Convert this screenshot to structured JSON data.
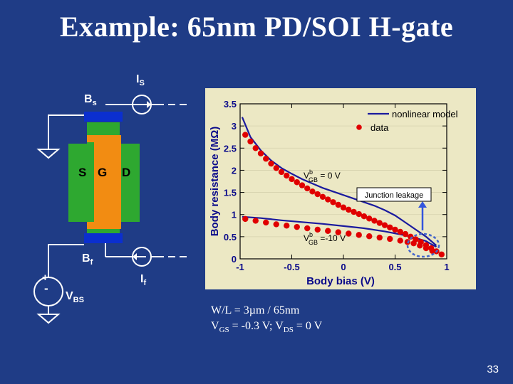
{
  "slide": {
    "title": "Example: 65nm PD/SOI H-gate",
    "page_number": "33"
  },
  "circuit": {
    "is_label": "I",
    "is_sub": "S",
    "bs_label": "B",
    "bs_sub": "s",
    "s_label": "S",
    "g_label": "G",
    "d_label": "D",
    "bf_label": "B",
    "bf_sub": "f",
    "if_label": "I",
    "if_sub": "f",
    "vbs_label": "V",
    "vbs_sub": "BS",
    "plus": "+",
    "minus": "-"
  },
  "caption": {
    "line1": "W/L = 3µm / 65nm",
    "line2_a": "V",
    "line2_sub1": "GS",
    "line2_b": " = -0.3 V; V",
    "line2_sub2": "DS",
    "line2_c": " = 0 V"
  },
  "chart_data": {
    "type": "line",
    "xlabel": "Body bias (V)",
    "ylabel": "Body resistance (MΩ)",
    "xlim": [
      -1,
      1
    ],
    "ylim": [
      0,
      3.5
    ],
    "x_ticks": [
      "-1",
      "-0.5",
      "0",
      "0.5",
      "1"
    ],
    "y_ticks": [
      "0",
      "0.5",
      "1",
      "1.5",
      "2",
      "2.5",
      "3",
      "3.5"
    ],
    "legend_position": "top-right",
    "legend": [
      "nonlinear model",
      "data"
    ],
    "annotations": {
      "upper_curve": "V",
      "upper_curve_sup": "b",
      "upper_curve_sub": "GB",
      "upper_curve_value": " = 0 V",
      "lower_curve": "V",
      "lower_curve_sup": "b",
      "lower_curve_sub": "GB",
      "lower_curve_value": " =-10 V",
      "callout": "Junction leakage"
    },
    "colors": {
      "model": "#1a1a9e",
      "data": "#e00000",
      "panel": "#ece8c4",
      "background": "#1f3c86",
      "circle": "#4466cc"
    },
    "series": [
      {
        "name": "nonlinear model",
        "curve": "VGB = 0 V",
        "kind": "line",
        "x": [
          -0.98,
          -0.9,
          -0.8,
          -0.7,
          -0.6,
          -0.5,
          -0.4,
          -0.3,
          -0.2,
          -0.1,
          0,
          0.1,
          0.2,
          0.3,
          0.4,
          0.5,
          0.6,
          0.7,
          0.8,
          0.85,
          0.9
        ],
        "y": [
          3.2,
          2.75,
          2.45,
          2.22,
          2.05,
          1.92,
          1.8,
          1.7,
          1.6,
          1.52,
          1.44,
          1.36,
          1.28,
          1.2,
          1.1,
          0.98,
          0.82,
          0.66,
          0.5,
          0.4,
          0.3
        ]
      },
      {
        "name": "nonlinear model",
        "curve": "VGB = -10 V",
        "kind": "line",
        "x": [
          -0.98,
          -0.8,
          -0.6,
          -0.4,
          -0.2,
          0,
          0.2,
          0.4,
          0.6,
          0.7,
          0.8,
          0.85,
          0.9
        ],
        "y": [
          0.95,
          0.92,
          0.87,
          0.83,
          0.79,
          0.74,
          0.69,
          0.62,
          0.53,
          0.47,
          0.4,
          0.33,
          0.27
        ]
      },
      {
        "name": "data",
        "curve": "VGB = 0 V",
        "kind": "markers",
        "x": [
          -0.95,
          -0.9,
          -0.85,
          -0.8,
          -0.75,
          -0.7,
          -0.65,
          -0.6,
          -0.55,
          -0.5,
          -0.45,
          -0.4,
          -0.35,
          -0.3,
          -0.25,
          -0.2,
          -0.15,
          -0.1,
          -0.05,
          0,
          0.05,
          0.1,
          0.15,
          0.2,
          0.25,
          0.3,
          0.35,
          0.4,
          0.45,
          0.5,
          0.55,
          0.6,
          0.65,
          0.7,
          0.75,
          0.8,
          0.85,
          0.9,
          0.95
        ],
        "y": [
          2.8,
          2.65,
          2.5,
          2.38,
          2.26,
          2.15,
          2.05,
          1.96,
          1.88,
          1.8,
          1.73,
          1.66,
          1.59,
          1.52,
          1.46,
          1.4,
          1.34,
          1.28,
          1.22,
          1.16,
          1.11,
          1.06,
          1.01,
          0.96,
          0.91,
          0.86,
          0.81,
          0.76,
          0.71,
          0.66,
          0.61,
          0.56,
          0.5,
          0.44,
          0.38,
          0.31,
          0.24,
          0.17,
          0.1
        ]
      },
      {
        "name": "data",
        "curve": "VGB = -10 V",
        "kind": "markers",
        "x": [
          -0.95,
          -0.85,
          -0.75,
          -0.65,
          -0.55,
          -0.45,
          -0.35,
          -0.25,
          -0.15,
          -0.05,
          0.05,
          0.15,
          0.25,
          0.35,
          0.45,
          0.55,
          0.62,
          0.68,
          0.74,
          0.8,
          0.86
        ],
        "y": [
          0.9,
          0.86,
          0.82,
          0.78,
          0.75,
          0.72,
          0.69,
          0.66,
          0.63,
          0.6,
          0.57,
          0.54,
          0.51,
          0.48,
          0.45,
          0.41,
          0.38,
          0.35,
          0.3,
          0.24,
          0.18
        ]
      }
    ]
  }
}
